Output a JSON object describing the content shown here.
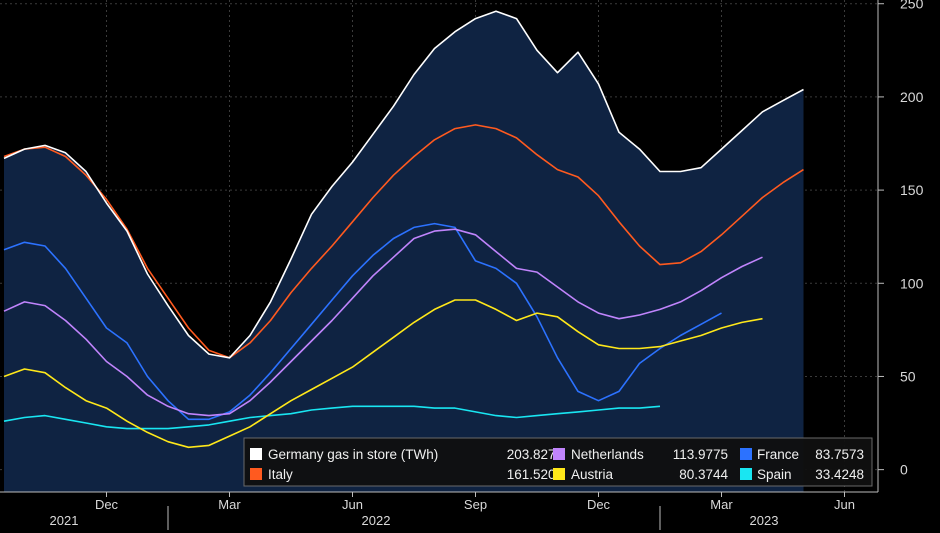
{
  "chart_data": {
    "type": "line",
    "title": "",
    "xlabel": "",
    "ylabel": "",
    "ylim": [
      -12,
      252
    ],
    "y_ticks": [
      0,
      50,
      100,
      150,
      200,
      250
    ],
    "x_month_ticks": [
      "Dec",
      "Mar",
      "Jun",
      "Sep",
      "Dec",
      "Mar",
      "Jun"
    ],
    "x_year_labels": [
      "2021",
      "2022",
      "2023"
    ],
    "grid": true,
    "legend_position": "bottom-right",
    "x_dates": [
      "2021-09-15",
      "2021-10-01",
      "2021-10-15",
      "2021-11-01",
      "2021-11-15",
      "2021-12-01",
      "2021-12-15",
      "2022-01-01",
      "2022-01-15",
      "2022-02-01",
      "2022-02-15",
      "2022-03-01",
      "2022-03-15",
      "2022-04-01",
      "2022-04-15",
      "2022-05-01",
      "2022-05-15",
      "2022-06-01",
      "2022-06-15",
      "2022-07-01",
      "2022-07-15",
      "2022-08-01",
      "2022-08-15",
      "2022-09-01",
      "2022-09-15",
      "2022-10-01",
      "2022-10-15",
      "2022-11-01",
      "2022-11-15",
      "2022-12-01",
      "2022-12-15",
      "2023-01-01",
      "2023-01-15",
      "2023-02-01",
      "2023-02-15",
      "2023-03-01",
      "2023-03-15",
      "2023-04-01",
      "2023-04-15",
      "2023-05-01",
      "2023-05-15",
      "2023-06-01",
      "2023-06-15"
    ],
    "series": [
      {
        "name": "Germany gas in store (TWh)",
        "legend_value": "203.8273",
        "color": "#ffffff",
        "values": [
          167,
          172,
          174,
          170,
          160,
          143,
          128,
          105,
          88,
          72,
          62,
          60,
          72,
          90,
          113,
          137,
          152,
          165,
          180,
          195,
          212,
          226,
          235,
          242,
          246,
          242,
          225,
          213,
          224,
          207,
          181,
          172,
          160,
          160,
          162,
          172,
          182,
          192,
          198,
          204
        ]
      },
      {
        "name": "Italy",
        "legend_value": "161.5203",
        "color": "#ff5a1f",
        "values": [
          168,
          172,
          173,
          168,
          158,
          145,
          129,
          108,
          92,
          76,
          64,
          60,
          68,
          80,
          95,
          108,
          120,
          133,
          146,
          158,
          168,
          177,
          183,
          185,
          183,
          178,
          169,
          161,
          157,
          147,
          133,
          120,
          110,
          111,
          117,
          126,
          136,
          146,
          154,
          161
        ]
      },
      {
        "name": "Netherlands",
        "legend_value": "113.9775",
        "color": "#c084fc",
        "values": [
          85,
          90,
          88,
          80,
          70,
          58,
          50,
          40,
          34,
          30,
          29,
          30,
          37,
          47,
          58,
          69,
          80,
          92,
          104,
          114,
          124,
          128,
          129,
          126,
          117,
          108,
          106,
          98,
          90,
          84,
          81,
          83,
          86,
          90,
          96,
          103,
          109,
          114
        ]
      },
      {
        "name": "Austria",
        "legend_value": "80.3744",
        "color": "#ffe81a",
        "values": [
          50,
          54,
          52,
          44,
          37,
          33,
          26,
          20,
          15,
          12,
          13,
          18,
          23,
          30,
          37,
          43,
          49,
          55,
          63,
          71,
          79,
          86,
          91,
          91,
          86,
          80,
          84,
          82,
          74,
          67,
          65,
          65,
          66,
          69,
          72,
          76,
          79,
          81
        ]
      },
      {
        "name": "France",
        "legend_value": "83.7573",
        "color": "#2c72ff",
        "values": [
          118,
          122,
          120,
          108,
          92,
          76,
          68,
          50,
          37,
          27,
          27,
          31,
          40,
          52,
          65,
          78,
          91,
          104,
          115,
          124,
          130,
          132,
          130,
          112,
          108,
          100,
          82,
          60,
          42,
          37,
          42,
          57,
          65,
          72,
          78,
          84
        ]
      },
      {
        "name": "Spain",
        "legend_value": "33.4248",
        "color": "#19e6f2",
        "values": [
          26,
          28,
          29,
          27,
          25,
          23,
          22,
          22,
          22,
          23,
          24,
          26,
          28,
          29,
          30,
          32,
          33,
          34,
          34,
          34,
          34,
          33,
          33,
          31,
          29,
          28,
          29,
          30,
          31,
          32,
          33,
          33,
          34
        ]
      }
    ]
  }
}
